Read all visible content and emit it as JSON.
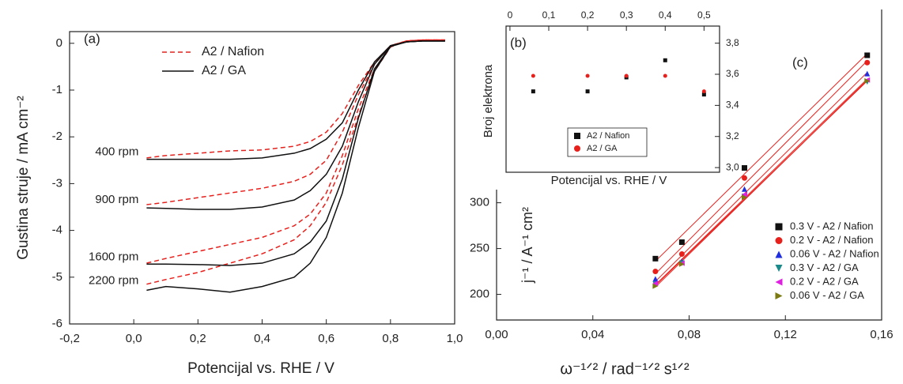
{
  "chart_data": [
    {
      "type": "line",
      "panel": "(a)",
      "xlabel": "Potencijal vs. RHE / V",
      "ylabel": "Gustina struje / mA cm⁻²",
      "xlim": [
        -0.2,
        1.0
      ],
      "ylim": [
        -6,
        0.25
      ],
      "xticks": [
        {
          "value": -0.2,
          "label": "-0,2"
        },
        {
          "value": 0.0,
          "label": "0,0"
        },
        {
          "value": 0.2,
          "label": "0,2"
        },
        {
          "value": 0.4,
          "label": "0,4"
        },
        {
          "value": 0.6,
          "label": "0,6"
        },
        {
          "value": 0.8,
          "label": "0,8"
        },
        {
          "value": 1.0,
          "label": "1,0"
        }
      ],
      "yticks": [
        -6,
        -5,
        -4,
        -3,
        -2,
        -1,
        0
      ],
      "legend": "upper center",
      "annotations": [
        "400 rpm",
        "900 rpm",
        "1600 rpm",
        "2200 rpm"
      ],
      "x": [
        0.04,
        0.1,
        0.2,
        0.3,
        0.4,
        0.5,
        0.55,
        0.6,
        0.65,
        0.7,
        0.75,
        0.8,
        0.85,
        0.9,
        0.97
      ],
      "series": [
        {
          "name": "A2 / Nafion",
          "color": "#e8201c",
          "dashed": true,
          "curves": [
            [
              -2.45,
              -2.4,
              -2.35,
              -2.3,
              -2.28,
              -2.2,
              -2.1,
              -1.9,
              -1.5,
              -0.9,
              -0.4,
              -0.05,
              0.05,
              0.07,
              0.07
            ],
            [
              -3.45,
              -3.4,
              -3.3,
              -3.2,
              -3.1,
              -2.95,
              -2.8,
              -2.5,
              -1.9,
              -1.1,
              -0.45,
              -0.05,
              0.05,
              0.07,
              0.07
            ],
            [
              -4.7,
              -4.6,
              -4.45,
              -4.3,
              -4.15,
              -3.9,
              -3.65,
              -3.2,
              -2.4,
              -1.4,
              -0.55,
              -0.07,
              0.05,
              0.07,
              0.07
            ],
            [
              -5.15,
              -5.05,
              -4.9,
              -4.7,
              -4.5,
              -4.2,
              -3.9,
              -3.4,
              -2.6,
              -1.55,
              -0.6,
              -0.08,
              0.05,
              0.07,
              0.07
            ]
          ]
        },
        {
          "name": "A2 / GA",
          "color": "#111111",
          "dashed": false,
          "curves": [
            [
              -2.48,
              -2.48,
              -2.48,
              -2.48,
              -2.45,
              -2.35,
              -2.25,
              -2.05,
              -1.7,
              -1.0,
              -0.4,
              -0.05,
              0.03,
              0.05,
              0.05
            ],
            [
              -3.52,
              -3.53,
              -3.55,
              -3.55,
              -3.5,
              -3.35,
              -3.15,
              -2.8,
              -2.2,
              -1.25,
              -0.45,
              -0.05,
              0.03,
              0.05,
              0.05
            ],
            [
              -4.72,
              -4.72,
              -4.73,
              -4.75,
              -4.7,
              -4.5,
              -4.25,
              -3.8,
              -2.9,
              -1.6,
              -0.55,
              -0.06,
              0.03,
              0.05,
              0.05
            ],
            [
              -5.28,
              -5.2,
              -5.25,
              -5.32,
              -5.2,
              -5.0,
              -4.7,
              -4.15,
              -3.2,
              -1.8,
              -0.6,
              -0.07,
              0.03,
              0.05,
              0.05
            ]
          ]
        }
      ]
    },
    {
      "type": "scatter",
      "panel": "(b)",
      "xlabel": "Potencijal vs. RHE / V",
      "ylabel": "Broj elektrona",
      "xaxis_position": "top",
      "yaxis_position": "right",
      "xlim": [
        -0.01,
        0.54
      ],
      "ylim": [
        2.97,
        3.91
      ],
      "xticks": [
        0,
        {
          "value": 0.1,
          "label": "0,1"
        },
        {
          "value": 0.2,
          "label": "0,2"
        },
        {
          "value": 0.3,
          "label": "0,3"
        },
        {
          "value": 0.4,
          "label": "0,4"
        },
        {
          "value": 0.5,
          "label": "0,5"
        }
      ],
      "yticks": [
        {
          "value": 3.0,
          "label": "3,0"
        },
        {
          "value": 3.2,
          "label": "3,2"
        },
        {
          "value": 3.4,
          "label": "3,4"
        },
        {
          "value": 3.6,
          "label": "3,6"
        },
        {
          "value": 3.8,
          "label": "3,8"
        }
      ],
      "legend": "lower left",
      "x": [
        0.06,
        0.2,
        0.3,
        0.4,
        0.5
      ],
      "series": [
        {
          "name": "A2 / Nafion",
          "color": "#111111",
          "marker": "square",
          "values": [
            3.49,
            3.49,
            3.58,
            3.69,
            3.47
          ]
        },
        {
          "name": "A2 / GA",
          "color": "#e8201c",
          "marker": "circle",
          "values": [
            3.59,
            3.59,
            3.59,
            3.59,
            3.49
          ]
        }
      ]
    },
    {
      "type": "scatter",
      "panel": "(c)",
      "xlabel": "ω⁻¹ᐟ² / rad⁻¹ᐟ² s¹ᐟ²",
      "ylabel": "j⁻¹ / A⁻¹ cm²",
      "xlim": [
        0,
        0.16
      ],
      "ylim": [
        172,
        511
      ],
      "xticks": [
        {
          "value": 0,
          "label": "0,00"
        },
        {
          "value": 0.04,
          "label": "0,04"
        },
        {
          "value": 0.08,
          "label": "0,08"
        },
        {
          "value": 0.12,
          "label": "0,12"
        },
        {
          "value": 0.16,
          "label": "0,16"
        }
      ],
      "yticks": [
        200,
        250,
        300
      ],
      "legend": "lower right",
      "fit_color": "#e8201c",
      "x": [
        0.066,
        0.077,
        0.103,
        0.154
      ],
      "series": [
        {
          "name": "0.3 V - A2 / Nafion",
          "color": "#111111",
          "marker": "square",
          "values": [
            239,
            257,
            338,
            461
          ]
        },
        {
          "name": "0.2 V - A2 / Nafion",
          "color": "#e8201c",
          "marker": "circle",
          "values": [
            225,
            244,
            327,
            453
          ]
        },
        {
          "name": "0.06 V - A2 / Nafion",
          "color": "#1f2fe0",
          "marker": "triangle-up",
          "values": [
            217,
            236,
            315,
            441
          ]
        },
        {
          "name": "0.3 V - A2 / GA",
          "color": "#1a8a8a",
          "marker": "triangle-down",
          "values": [
            211,
            234,
            307,
            432
          ]
        },
        {
          "name": "0.2 V - A2 / GA",
          "color": "#e020e0",
          "marker": "triangle-left",
          "values": [
            212,
            234,
            309,
            434
          ]
        },
        {
          "name": "0.06 V - A2 / GA",
          "color": "#7a7a10",
          "marker": "triangle-right",
          "values": [
            209,
            233,
            306,
            433
          ]
        }
      ]
    }
  ]
}
